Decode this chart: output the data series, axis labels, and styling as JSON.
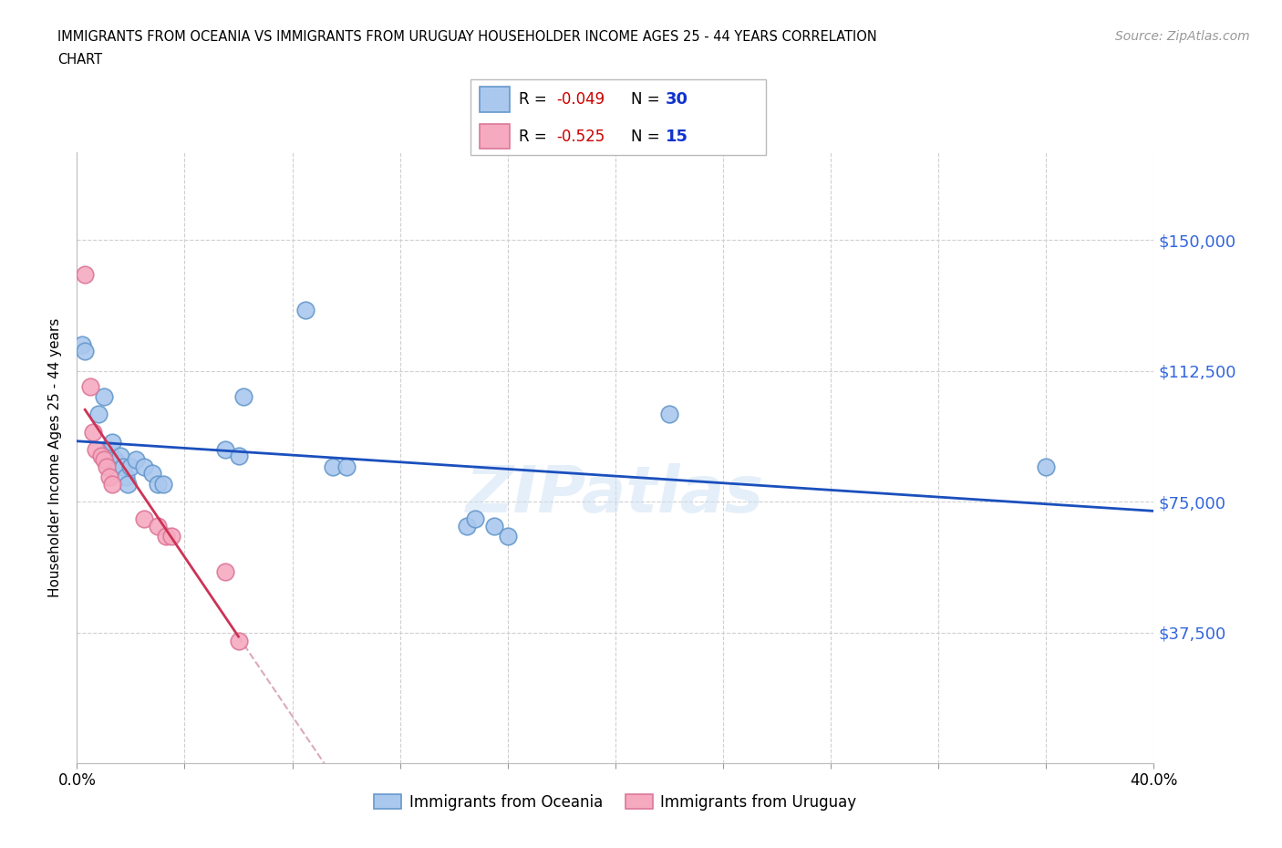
{
  "title_line1": "IMMIGRANTS FROM OCEANIA VS IMMIGRANTS FROM URUGUAY HOUSEHOLDER INCOME AGES 25 - 44 YEARS CORRELATION",
  "title_line2": "CHART",
  "source": "Source: ZipAtlas.com",
  "ylabel": "Householder Income Ages 25 - 44 years",
  "watermark": "ZIPatlas",
  "xlim": [
    0.0,
    0.4
  ],
  "ylim": [
    0,
    175000
  ],
  "yticks": [
    37500,
    75000,
    112500,
    150000
  ],
  "ytick_labels": [
    "$37,500",
    "$75,000",
    "$112,500",
    "$150,000"
  ],
  "xticks": [
    0.0,
    0.04,
    0.08,
    0.12,
    0.16,
    0.2,
    0.24,
    0.28,
    0.32,
    0.36,
    0.4
  ],
  "xtick_labels_show": [
    "0.0%",
    "",
    "",
    "",
    "",
    "",
    "",
    "",
    "",
    "",
    "40.0%"
  ],
  "oceania_color": "#aac8ee",
  "oceania_edge": "#6699cc",
  "uruguay_color": "#f5aac0",
  "uruguay_edge": "#dd7799",
  "trend_oceania_color": "#1a4fbd",
  "trend_uruguay_color": "#cc3355",
  "trend_uruguay_dashed_color": "#ddaabb",
  "legend_R_oceania": "-0.049",
  "legend_N_oceania": "30",
  "legend_R_uruguay": "-0.525",
  "legend_N_uruguay": "15",
  "oceania_x": [
    0.002,
    0.003,
    0.008,
    0.01,
    0.012,
    0.013,
    0.014,
    0.015,
    0.016,
    0.017,
    0.018,
    0.019,
    0.02,
    0.022,
    0.025,
    0.028,
    0.03,
    0.032,
    0.055,
    0.06,
    0.062,
    0.085,
    0.095,
    0.1,
    0.145,
    0.148,
    0.155,
    0.16,
    0.22,
    0.36
  ],
  "oceania_y": [
    120000,
    118000,
    100000,
    105000,
    90000,
    92000,
    87000,
    86000,
    88000,
    85000,
    82000,
    80000,
    85000,
    87000,
    85000,
    83000,
    80000,
    80000,
    90000,
    88000,
    105000,
    130000,
    85000,
    85000,
    68000,
    70000,
    68000,
    65000,
    100000,
    85000
  ],
  "uruguay_x": [
    0.003,
    0.005,
    0.006,
    0.007,
    0.009,
    0.01,
    0.011,
    0.012,
    0.013,
    0.025,
    0.03,
    0.033,
    0.035,
    0.055,
    0.06
  ],
  "uruguay_y": [
    140000,
    108000,
    95000,
    90000,
    88000,
    87000,
    85000,
    82000,
    80000,
    70000,
    68000,
    65000,
    65000,
    55000,
    35000
  ]
}
